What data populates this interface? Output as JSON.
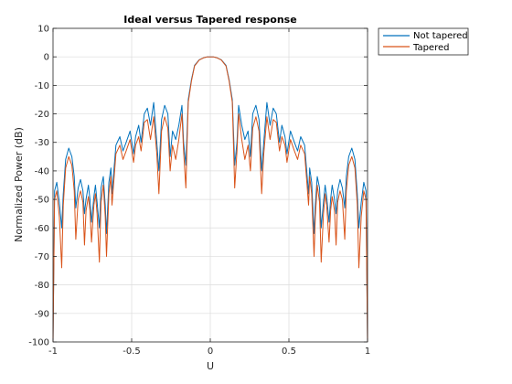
{
  "chart_data": {
    "type": "line",
    "title": "Ideal versus Tapered response",
    "xlabel": "U",
    "ylabel": "Normalized Power (dB)",
    "xlim": [
      -1,
      1
    ],
    "ylim": [
      -100,
      10
    ],
    "xticks": [
      "-1",
      "-0.5",
      "0",
      "0.5",
      "1"
    ],
    "yticks": [
      "10",
      "0",
      "-10",
      "-20",
      "-30",
      "-40",
      "-50",
      "-60",
      "-70",
      "-80",
      "-90",
      "-100"
    ],
    "grid": true,
    "legend_placement": "outside-top-right",
    "series": [
      {
        "name": "Not tapered",
        "color": "#0072BD",
        "x": [
          -1,
          -0.99,
          -0.976,
          -0.96,
          -0.945,
          -0.935,
          -0.92,
          -0.9,
          -0.88,
          -0.865,
          -0.855,
          -0.84,
          -0.825,
          -0.81,
          -0.8,
          -0.79,
          -0.775,
          -0.765,
          -0.755,
          -0.74,
          -0.73,
          -0.72,
          -0.705,
          -0.695,
          -0.68,
          -0.668,
          -0.66,
          -0.645,
          -0.632,
          -0.625,
          -0.6,
          -0.575,
          -0.555,
          -0.535,
          -0.51,
          -0.488,
          -0.475,
          -0.455,
          -0.44,
          -0.42,
          -0.4,
          -0.38,
          -0.36,
          -0.34,
          -0.327,
          -0.31,
          -0.29,
          -0.27,
          -0.255,
          -0.24,
          -0.22,
          -0.2,
          -0.18,
          -0.17,
          -0.155,
          -0.14,
          -0.12,
          -0.1,
          -0.07,
          -0.04,
          -0.02,
          0,
          0.02,
          0.04,
          0.07,
          0.1,
          0.12,
          0.14,
          0.155,
          0.17,
          0.18,
          0.2,
          0.22,
          0.24,
          0.255,
          0.27,
          0.29,
          0.31,
          0.327,
          0.34,
          0.36,
          0.38,
          0.4,
          0.42,
          0.44,
          0.455,
          0.475,
          0.488,
          0.51,
          0.535,
          0.555,
          0.575,
          0.6,
          0.625,
          0.632,
          0.645,
          0.66,
          0.668,
          0.68,
          0.695,
          0.705,
          0.72,
          0.73,
          0.74,
          0.755,
          0.765,
          0.775,
          0.79,
          0.8,
          0.81,
          0.825,
          0.84,
          0.855,
          0.865,
          0.88,
          0.9,
          0.92,
          0.935,
          0.945,
          0.96,
          0.976,
          0.99,
          1
        ],
        "y": [
          -100,
          -47,
          -44,
          -51,
          -60,
          -48,
          -36,
          -32,
          -35,
          -42,
          -53,
          -46,
          -43,
          -47,
          -55,
          -50,
          -45,
          -50,
          -58,
          -49,
          -45,
          -51,
          -60,
          -46,
          -42,
          -52,
          -62,
          -44,
          -39,
          -48,
          -31,
          -28,
          -33,
          -30,
          -26,
          -34,
          -28,
          -24,
          -30,
          -20,
          -18,
          -24,
          -16,
          -30,
          -40,
          -22,
          -17,
          -20,
          -35,
          -26,
          -29,
          -24,
          -17,
          -30,
          -38,
          -15,
          -8,
          -3,
          -1,
          -0.3,
          0,
          0,
          0,
          -0.3,
          -1,
          -3,
          -8,
          -15,
          -38,
          -30,
          -17,
          -24,
          -29,
          -26,
          -35,
          -20,
          -17,
          -22,
          -40,
          -30,
          -16,
          -24,
          -18,
          -20,
          -30,
          -24,
          -28,
          -34,
          -26,
          -30,
          -33,
          -28,
          -31,
          -48,
          -39,
          -44,
          -62,
          -52,
          -42,
          -46,
          -60,
          -51,
          -45,
          -49,
          -58,
          -50,
          -45,
          -50,
          -55,
          -47,
          -43,
          -46,
          -53,
          -42,
          -35,
          -32,
          -36,
          -48,
          -60,
          -51,
          -44,
          -47,
          -100
        ]
      },
      {
        "name": "Tapered",
        "color": "#D95319",
        "x": [
          -1,
          -0.99,
          -0.976,
          -0.96,
          -0.945,
          -0.935,
          -0.92,
          -0.9,
          -0.88,
          -0.865,
          -0.855,
          -0.84,
          -0.825,
          -0.81,
          -0.8,
          -0.79,
          -0.775,
          -0.765,
          -0.755,
          -0.74,
          -0.73,
          -0.72,
          -0.705,
          -0.695,
          -0.68,
          -0.668,
          -0.66,
          -0.645,
          -0.632,
          -0.625,
          -0.6,
          -0.575,
          -0.555,
          -0.535,
          -0.51,
          -0.488,
          -0.475,
          -0.455,
          -0.44,
          -0.42,
          -0.4,
          -0.38,
          -0.36,
          -0.34,
          -0.327,
          -0.31,
          -0.29,
          -0.27,
          -0.255,
          -0.24,
          -0.22,
          -0.2,
          -0.18,
          -0.17,
          -0.155,
          -0.14,
          -0.12,
          -0.1,
          -0.07,
          -0.04,
          -0.02,
          0,
          0.02,
          0.04,
          0.07,
          0.1,
          0.12,
          0.14,
          0.155,
          0.17,
          0.18,
          0.2,
          0.22,
          0.24,
          0.255,
          0.27,
          0.29,
          0.31,
          0.327,
          0.34,
          0.36,
          0.38,
          0.4,
          0.42,
          0.44,
          0.455,
          0.475,
          0.488,
          0.51,
          0.535,
          0.555,
          0.575,
          0.6,
          0.625,
          0.632,
          0.645,
          0.66,
          0.668,
          0.68,
          0.695,
          0.705,
          0.72,
          0.73,
          0.74,
          0.755,
          0.765,
          0.775,
          0.79,
          0.8,
          0.81,
          0.825,
          0.84,
          0.855,
          0.865,
          0.88,
          0.9,
          0.92,
          0.935,
          0.945,
          0.96,
          0.976,
          0.99,
          1
        ],
        "y": [
          -100,
          -50,
          -47,
          -56,
          -74,
          -52,
          -39,
          -35,
          -38,
          -47,
          -64,
          -50,
          -47,
          -51,
          -66,
          -54,
          -49,
          -54,
          -65,
          -52,
          -48,
          -55,
          -72,
          -51,
          -45,
          -56,
          -70,
          -48,
          -42,
          -52,
          -34,
          -31,
          -36,
          -33,
          -29,
          -37,
          -31,
          -28,
          -33,
          -23,
          -22,
          -29,
          -21,
          -34,
          -48,
          -26,
          -21,
          -25,
          -40,
          -31,
          -36,
          -29,
          -20,
          -33,
          -46,
          -16,
          -8.5,
          -3.2,
          -1.1,
          -0.3,
          0,
          0,
          0,
          -0.3,
          -1.1,
          -3.2,
          -8.5,
          -16,
          -46,
          -33,
          -20,
          -29,
          -36,
          -31,
          -40,
          -25,
          -21,
          -26,
          -48,
          -34,
          -21,
          -29,
          -22,
          -23,
          -33,
          -28,
          -31,
          -37,
          -29,
          -33,
          -36,
          -31,
          -34,
          -52,
          -42,
          -48,
          -70,
          -56,
          -45,
          -51,
          -72,
          -55,
          -48,
          -52,
          -65,
          -54,
          -49,
          -54,
          -66,
          -51,
          -47,
          -50,
          -64,
          -47,
          -38,
          -35,
          -39,
          -52,
          -74,
          -56,
          -47,
          -50,
          -100
        ]
      }
    ]
  }
}
